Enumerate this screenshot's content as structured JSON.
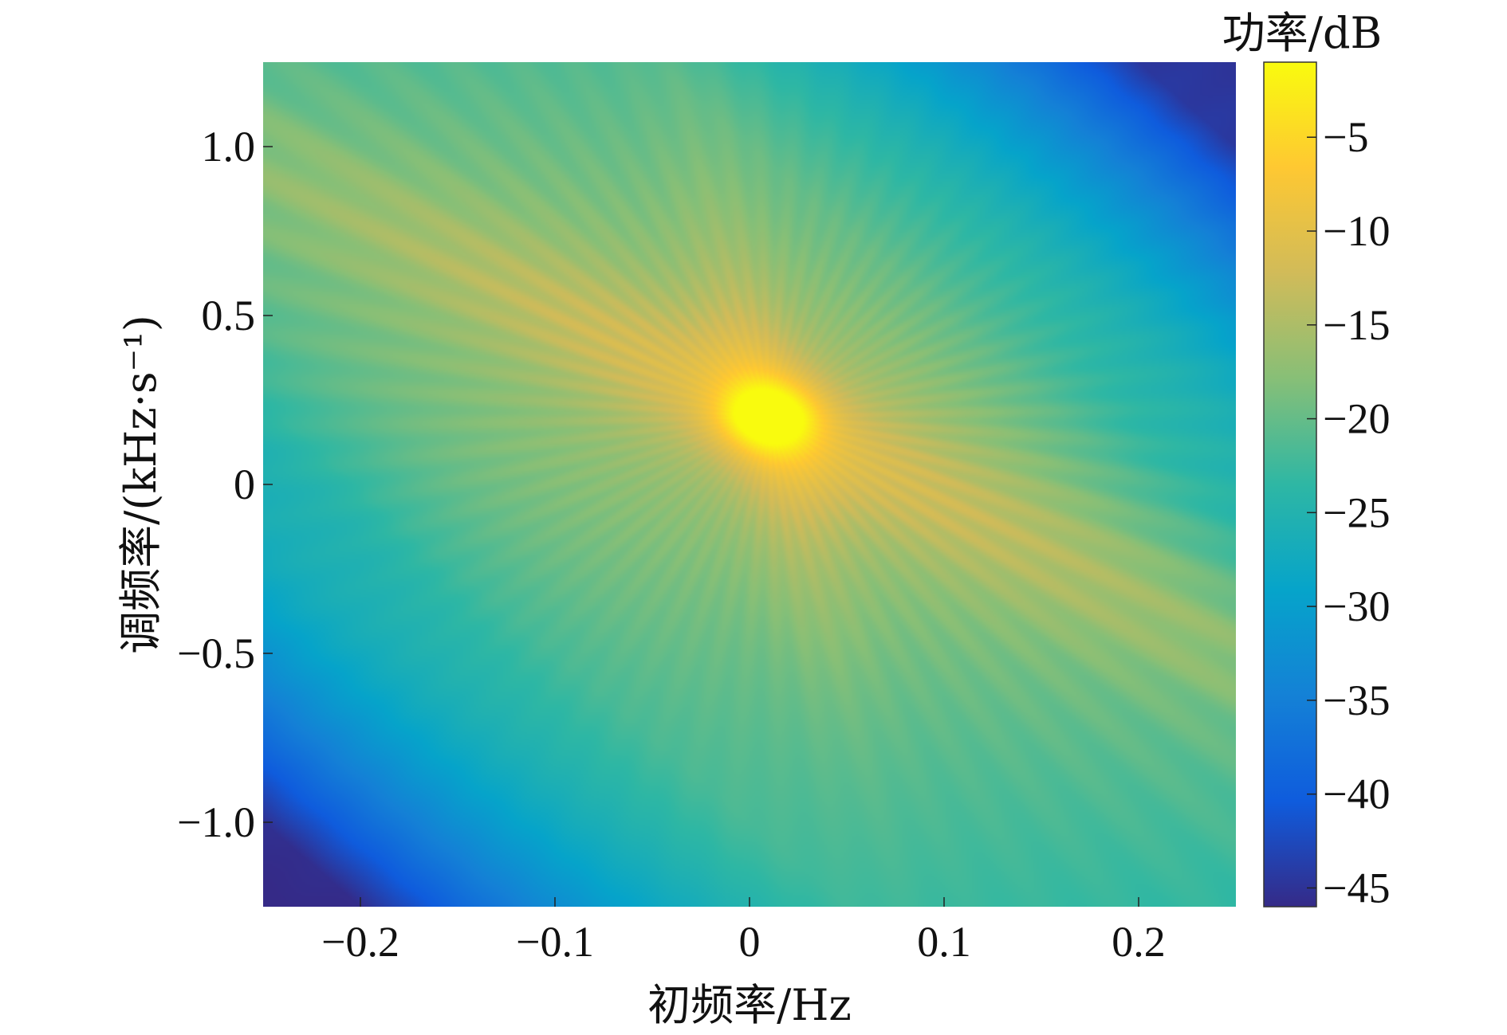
{
  "chart_data": {
    "type": "heatmap",
    "title": "",
    "xlabel": "初频率/Hz",
    "ylabel": "调频率/(kHz·s⁻¹)",
    "xlim": [
      -0.25,
      0.25
    ],
    "ylim": [
      -1.25,
      1.25
    ],
    "x_ticks": [
      -0.2,
      -0.1,
      0,
      0.1,
      0.2
    ],
    "x_tick_labels": [
      "−0.2",
      "−0.1",
      "0",
      "0.1",
      "0.2"
    ],
    "y_ticks": [
      1.0,
      0.5,
      0,
      -0.5,
      -1.0
    ],
    "y_tick_labels": [
      "1.0",
      "0.5",
      "0",
      "−0.5",
      "−1.0"
    ],
    "colorbar": {
      "label": "功率/dB",
      "range": [
        -46,
        -1
      ],
      "ticks": [
        -5,
        -10,
        -15,
        -20,
        -25,
        -30,
        -35,
        -40,
        -45
      ],
      "tick_labels": [
        "−5",
        "−10",
        "−15",
        "−20",
        "−25",
        "−30",
        "−35",
        "−40",
        "−45"
      ],
      "colormap": "parula",
      "colors": [
        "#352a87",
        "#0f5cdd",
        "#1481d6",
        "#06a4ca",
        "#2eb7a4",
        "#87bf77",
        "#d1bb59",
        "#fec832",
        "#f9fb0e"
      ]
    },
    "peak": {
      "x": 0.01,
      "y": 0.2,
      "value_db": -1
    },
    "ridges": [
      {
        "description": "main ridge through peak",
        "points": [
          [
            -0.25,
            0.95
          ],
          [
            0.01,
            0.2
          ],
          [
            0.25,
            -0.5
          ]
        ]
      },
      {
        "description": "secondary steep ridge",
        "points": [
          [
            -0.005,
            0.5
          ],
          [
            0.01,
            0.2
          ],
          [
            0.03,
            -0.3
          ]
        ]
      }
    ],
    "grid": false,
    "legend": "colorbar-right"
  }
}
